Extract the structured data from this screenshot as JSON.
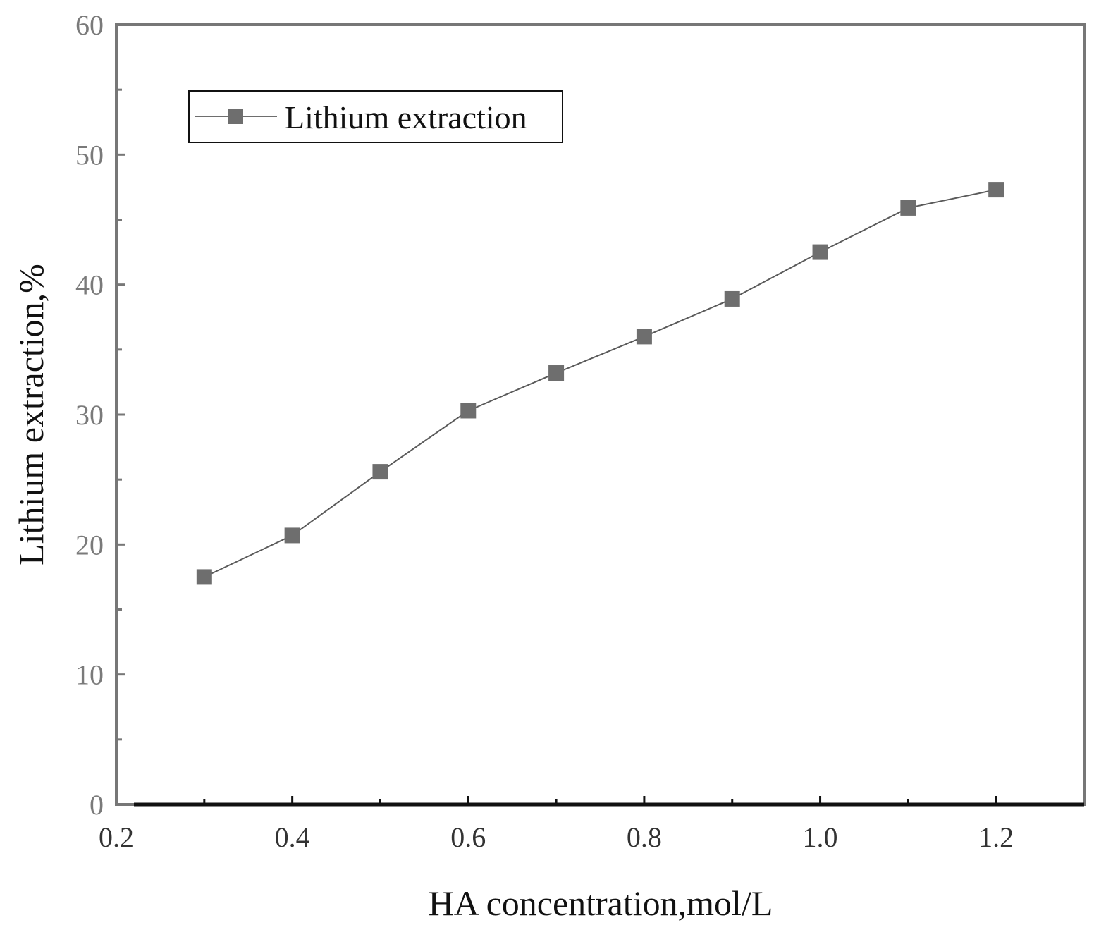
{
  "chart_data": {
    "type": "line",
    "title": "",
    "xlabel": "HA concentration,mol/L",
    "ylabel": "Lithium extraction,%",
    "xlim": [
      0.2,
      1.3
    ],
    "ylim": [
      0,
      60
    ],
    "x_ticks": [
      0.2,
      0.4,
      0.6,
      0.8,
      1.0,
      1.2
    ],
    "x_tick_labels": [
      "0.2",
      "0.4",
      "0.6",
      "0.8",
      "1.0",
      "1.2"
    ],
    "x_minor_ticks": [
      0.3,
      0.5,
      0.7,
      0.9,
      1.1
    ],
    "y_ticks": [
      0,
      10,
      20,
      30,
      40,
      50,
      60
    ],
    "y_tick_labels": [
      "0",
      "10",
      "20",
      "30",
      "40",
      "50",
      "60"
    ],
    "y_minor_ticks": [
      5,
      15,
      25,
      35,
      45,
      55
    ],
    "grid": false,
    "legend_position": "top-left",
    "series": [
      {
        "name": "Lithium extraction",
        "marker": "square",
        "color": "#6e6e6e",
        "x": [
          0.3,
          0.4,
          0.5,
          0.6,
          0.7,
          0.8,
          0.9,
          1.0,
          1.1,
          1.2
        ],
        "y": [
          17.5,
          20.7,
          25.6,
          30.3,
          33.2,
          36.0,
          38.9,
          42.5,
          45.9,
          47.3
        ]
      }
    ]
  }
}
